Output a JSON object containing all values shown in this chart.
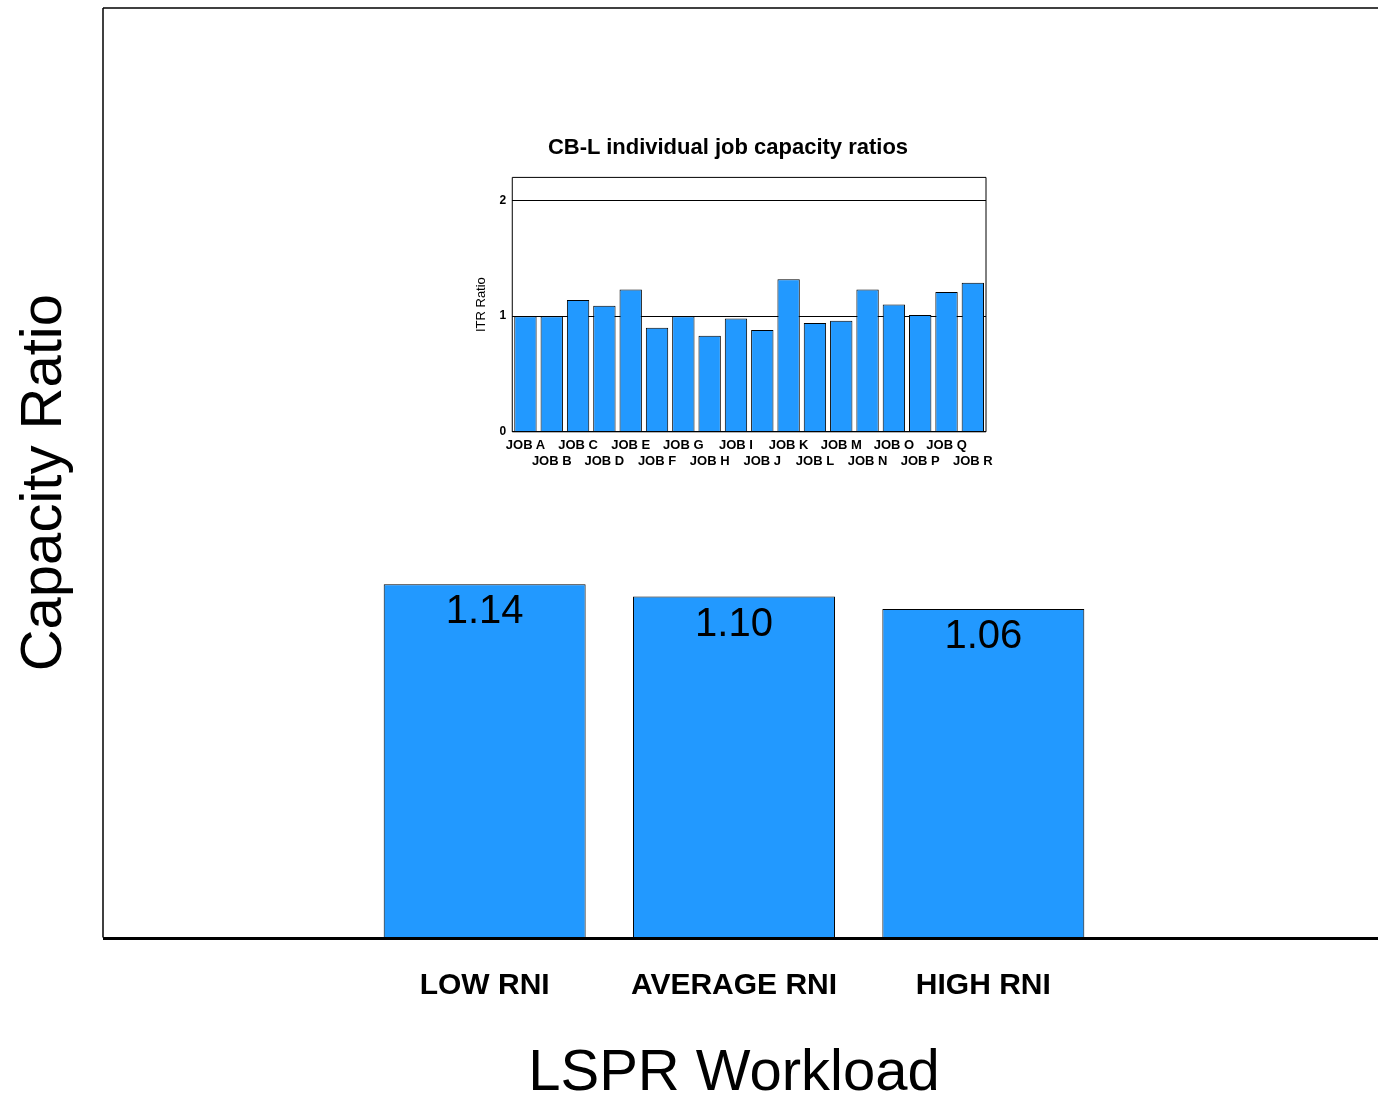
{
  "chart_data": [
    {
      "type": "bar",
      "xlabel": "LSPR Workload",
      "ylabel": "Capacity Ratio",
      "categories": [
        "LOW RNI",
        "AVERAGE RNI",
        "HIGH RNI"
      ],
      "values": [
        1.14,
        1.1,
        1.06
      ],
      "value_labels": [
        "1.14",
        "1.10",
        "1.06"
      ],
      "color": "#2299ff",
      "ylim": [
        0,
        3
      ],
      "tick_labels": "x"
    },
    {
      "type": "bar",
      "title": "CB-L individual job capacity ratios",
      "ylabel": "ITR Ratio",
      "categories": [
        "JOB A",
        "JOB B",
        "JOB C",
        "JOB D",
        "JOB E",
        "JOB F",
        "JOB G",
        "JOB H",
        "JOB I",
        "JOB J",
        "JOB K",
        "JOB L",
        "JOB M",
        "JOB N",
        "JOB O",
        "JOB P",
        "JOB Q",
        "JOB R"
      ],
      "values": [
        1.0,
        1.0,
        1.14,
        1.09,
        1.23,
        0.9,
        1.0,
        0.83,
        0.98,
        0.88,
        1.32,
        0.94,
        0.96,
        1.23,
        1.1,
        1.01,
        1.21,
        1.29
      ],
      "color": "#2299ff",
      "ylim": [
        0,
        2.2
      ],
      "yticks": [
        0,
        1,
        2
      ],
      "grid": "y"
    }
  ]
}
